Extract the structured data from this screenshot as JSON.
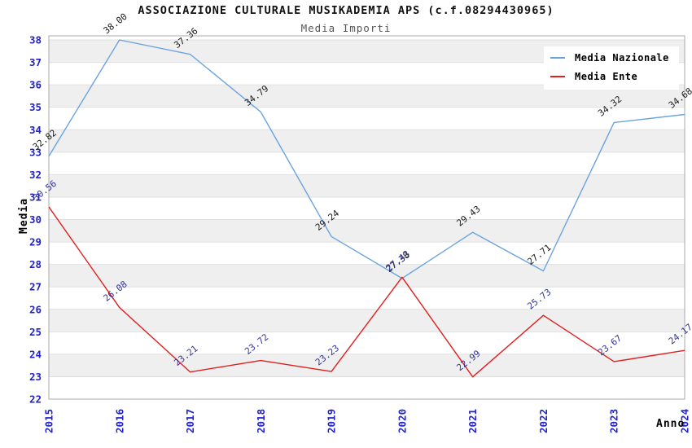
{
  "chart_data": {
    "type": "line",
    "title": "ASSOCIAZIONE CULTURALE MUSIKADEMIA APS (c.f.08294430965)",
    "subtitle": "Media Importi",
    "xlabel": "Anno",
    "ylabel": "Media",
    "categories": [
      "2015",
      "2016",
      "2017",
      "2018",
      "2019",
      "2020",
      "2021",
      "2022",
      "2023",
      "2024"
    ],
    "series": [
      {
        "name": "Media Nazionale",
        "color": "#6ba3e0",
        "label_color": "#1a1a1a",
        "values": [
          32.82,
          38.0,
          37.36,
          34.79,
          29.24,
          27.38,
          29.43,
          27.71,
          34.32,
          34.68
        ]
      },
      {
        "name": "Media Ente",
        "color": "#e01f1f",
        "label_color": "#333399",
        "values": [
          30.56,
          26.08,
          23.21,
          23.72,
          23.23,
          27.43,
          22.99,
          25.73,
          23.67,
          24.17
        ]
      }
    ],
    "ylim": [
      22,
      38
    ],
    "y_step": 1,
    "grid": "horizontal-bands",
    "legend_position": "top-right",
    "style": {
      "tick_label_color": "#2222cc",
      "band_color": "#efefef",
      "gridline_color": "#e0e0e0",
      "border_color": "#aaaaaa",
      "background": "#ffffff"
    }
  }
}
